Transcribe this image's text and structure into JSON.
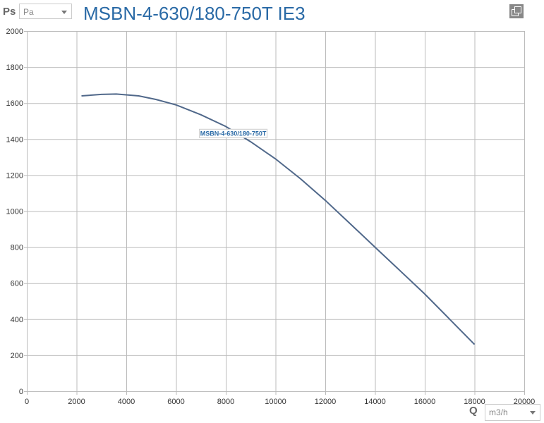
{
  "header": {
    "y_axis_label": "Ps",
    "y_unit": "Pa",
    "title": "MSBN-4-630/180-750T IE3",
    "copy_icon": "copy-icon"
  },
  "footer": {
    "x_axis_label": "Q",
    "x_unit": "m3/h"
  },
  "chart_data": {
    "type": "line",
    "title": "MSBN-4-630/180-750T IE3",
    "xlabel": "Q",
    "ylabel": "Ps",
    "xlim": [
      0,
      20000
    ],
    "ylim": [
      0,
      2000
    ],
    "xticks": [
      0,
      2000,
      4000,
      6000,
      8000,
      10000,
      12000,
      14000,
      16000,
      18000,
      20000
    ],
    "yticks": [
      0,
      200,
      400,
      600,
      800,
      1000,
      1200,
      1400,
      1600,
      1800,
      2000
    ],
    "grid": true,
    "series": [
      {
        "name": "MSBN-4-630/180-750T",
        "color": "#50688a",
        "x": [
          2200,
          3000,
          3600,
          4500,
          5200,
          6000,
          7000,
          8000,
          9000,
          10000,
          11000,
          12000,
          13000,
          14000,
          15000,
          16000,
          17000,
          18000
        ],
        "y": [
          1640,
          1648,
          1650,
          1640,
          1620,
          1590,
          1535,
          1470,
          1385,
          1290,
          1180,
          1060,
          930,
          800,
          670,
          540,
          400,
          260
        ]
      }
    ],
    "annotation": {
      "text": "MSBN-4-630/180-750T",
      "x": 8300,
      "y": 1400
    }
  }
}
